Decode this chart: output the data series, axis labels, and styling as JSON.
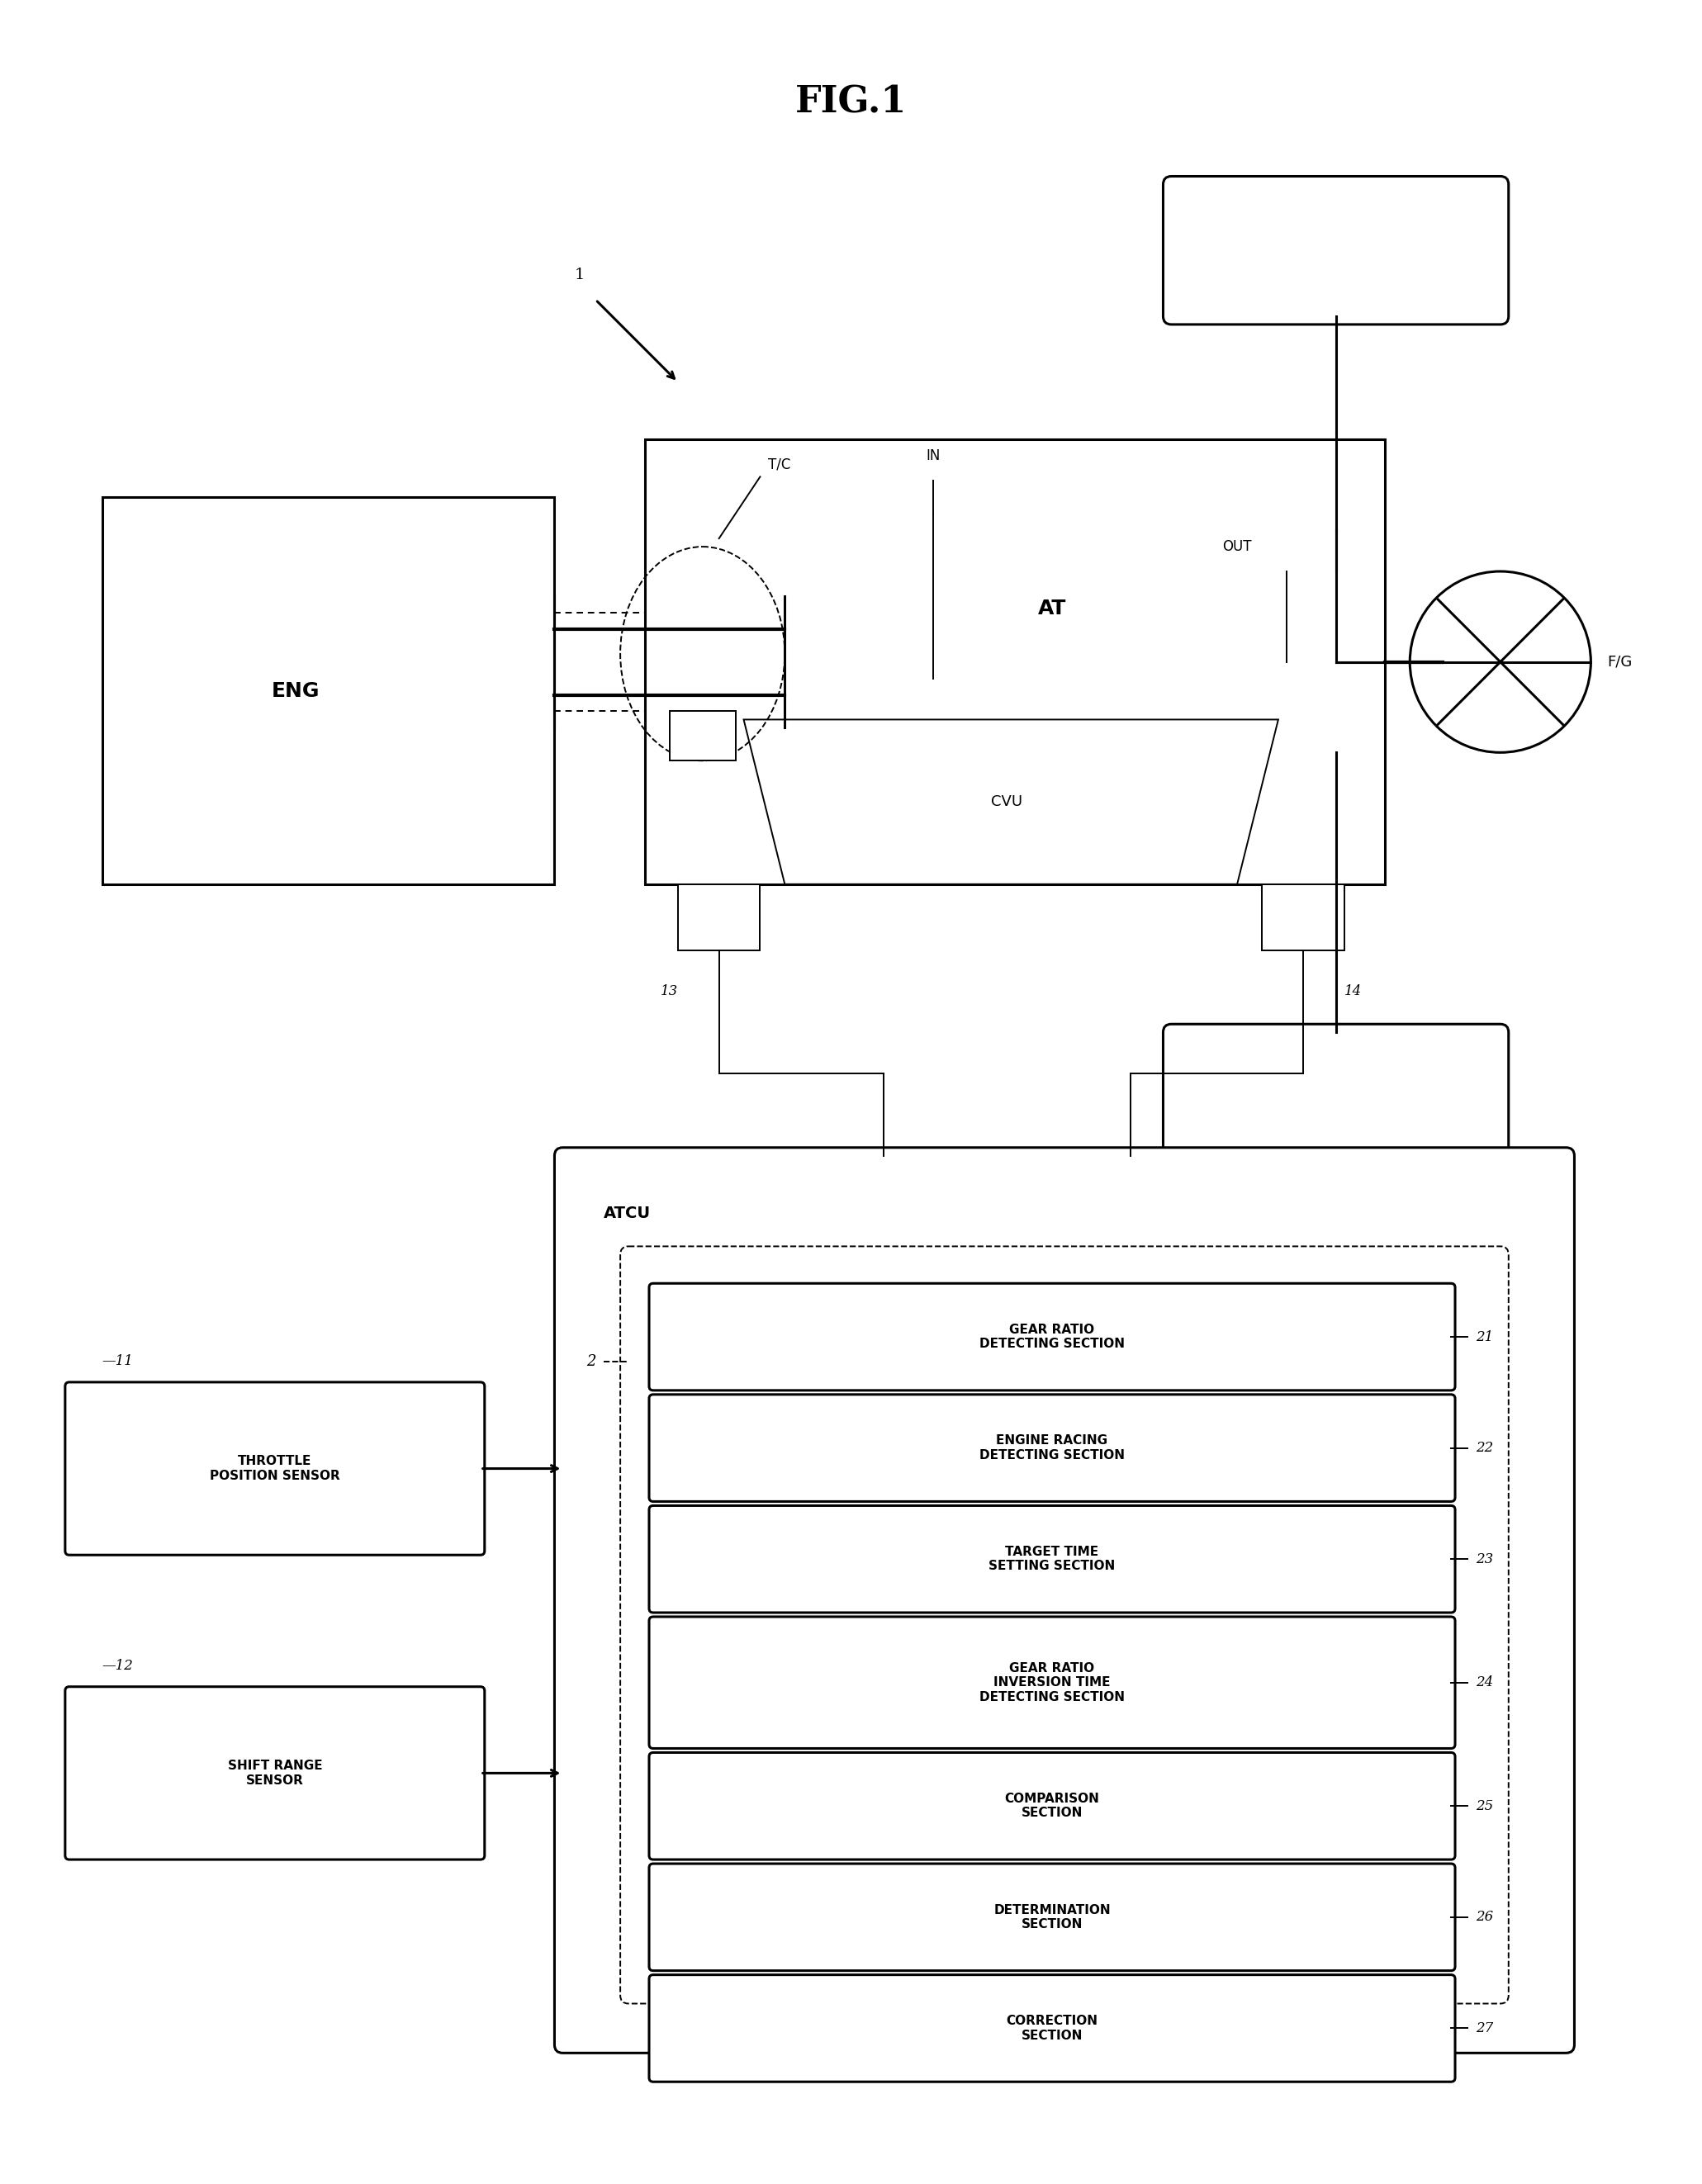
{
  "title": "FIG.1",
  "background_color": "#ffffff",
  "line_color": "#000000",
  "fig_width": 20.61,
  "fig_height": 26.45,
  "labels": {
    "fig_title": "FIG.1",
    "ref1": "1",
    "eng": "ENG",
    "at": "AT",
    "tc": "T/C",
    "in_label": "IN",
    "out_label": "OUT",
    "fg": "F/G",
    "cvu": "CVU",
    "atcu": "ATCU",
    "ref2": "2",
    "ref11": "11",
    "ref12": "12",
    "ref13": "13",
    "ref14": "14",
    "ref21": "21",
    "ref22": "22",
    "ref23": "23",
    "ref24": "24",
    "ref25": "25",
    "ref26": "26",
    "ref27": "27",
    "throttle": "THROTTLE\nPOSITION SENSOR",
    "shift": "SHIFT RANGE\nSENSOR",
    "box21": "GEAR RATIO\nDETECTING SECTION",
    "box22": "ENGINE RACING\nDETECTING SECTION",
    "box23": "TARGET TIME\nSETTING SECTION",
    "box24": "GEAR RATIO\nINVERSION TIME\nDETECTING SECTION",
    "box25": "COMPARISON\nSECTION",
    "box26": "DETERMINATION\nSECTION",
    "box27": "CORRECTION\nSECTION"
  }
}
